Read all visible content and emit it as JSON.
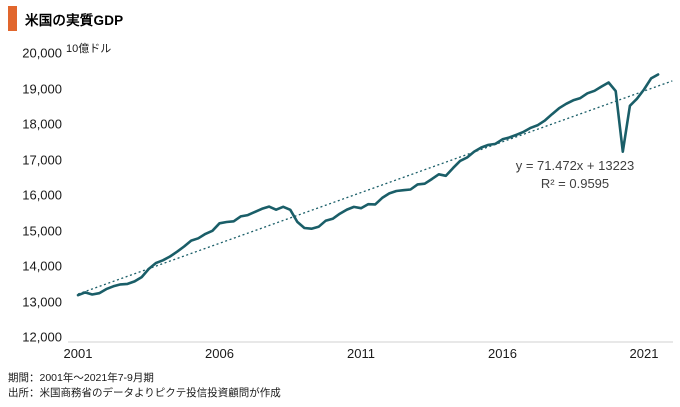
{
  "header": {
    "title": "米国の実質GDP"
  },
  "footer": {
    "period": "期間：2001年～2021年7-9月期",
    "source": "出所：米国商務省のデータよりピクテ投信投資顧問が作成"
  },
  "colors": {
    "accent_orange": "#e1662d",
    "line_teal": "#1a5e68",
    "axis_gray": "#d9d9d9",
    "text_black": "#1a1a1a",
    "equation_gray": "#3f3f3f"
  },
  "chart_data": {
    "type": "line",
    "title": "米国の実質GDP",
    "ylabel": "10億ドル",
    "ylim": [
      12000,
      20000
    ],
    "ytick_step": 1000,
    "xticks": [
      2001,
      2006,
      2011,
      2016,
      2021
    ],
    "x_start": "2001Q1",
    "x_end": "2021Q3",
    "frequency": "quarterly",
    "legend_position": "none",
    "grid": "off",
    "series": [
      {
        "name": "米国の実質GDP（10億ドル）",
        "values": [
          13263,
          13342,
          13283,
          13317,
          13434,
          13512,
          13565,
          13581,
          13651,
          13773,
          14002,
          14166,
          14244,
          14351,
          14488,
          14635,
          14800,
          14866,
          14988,
          15076,
          15287,
          15324,
          15345,
          15482,
          15517,
          15609,
          15697,
          15759,
          15671,
          15753,
          15667,
          15328,
          15155,
          15134,
          15189,
          15357,
          15415,
          15557,
          15672,
          15750,
          15713,
          15825,
          15820,
          16004,
          16129,
          16198,
          16220,
          16240,
          16382,
          16403,
          16532,
          16668,
          16625,
          16843,
          17044,
          17140,
          17306,
          17423,
          17496,
          17524,
          17653,
          17706,
          17784,
          17864,
          17977,
          18054,
          18186,
          18360,
          18530,
          18654,
          18752,
          18813,
          18950,
          19020,
          19141,
          19254,
          19011,
          17303,
          18597,
          18794,
          19055,
          19368,
          19479
        ]
      }
    ],
    "trendline": {
      "equation": "y = 71.472x + 13223",
      "r_squared_label": "R² = 0.9595",
      "slope_per_quarter": 71.472,
      "intercept": 13223
    }
  }
}
